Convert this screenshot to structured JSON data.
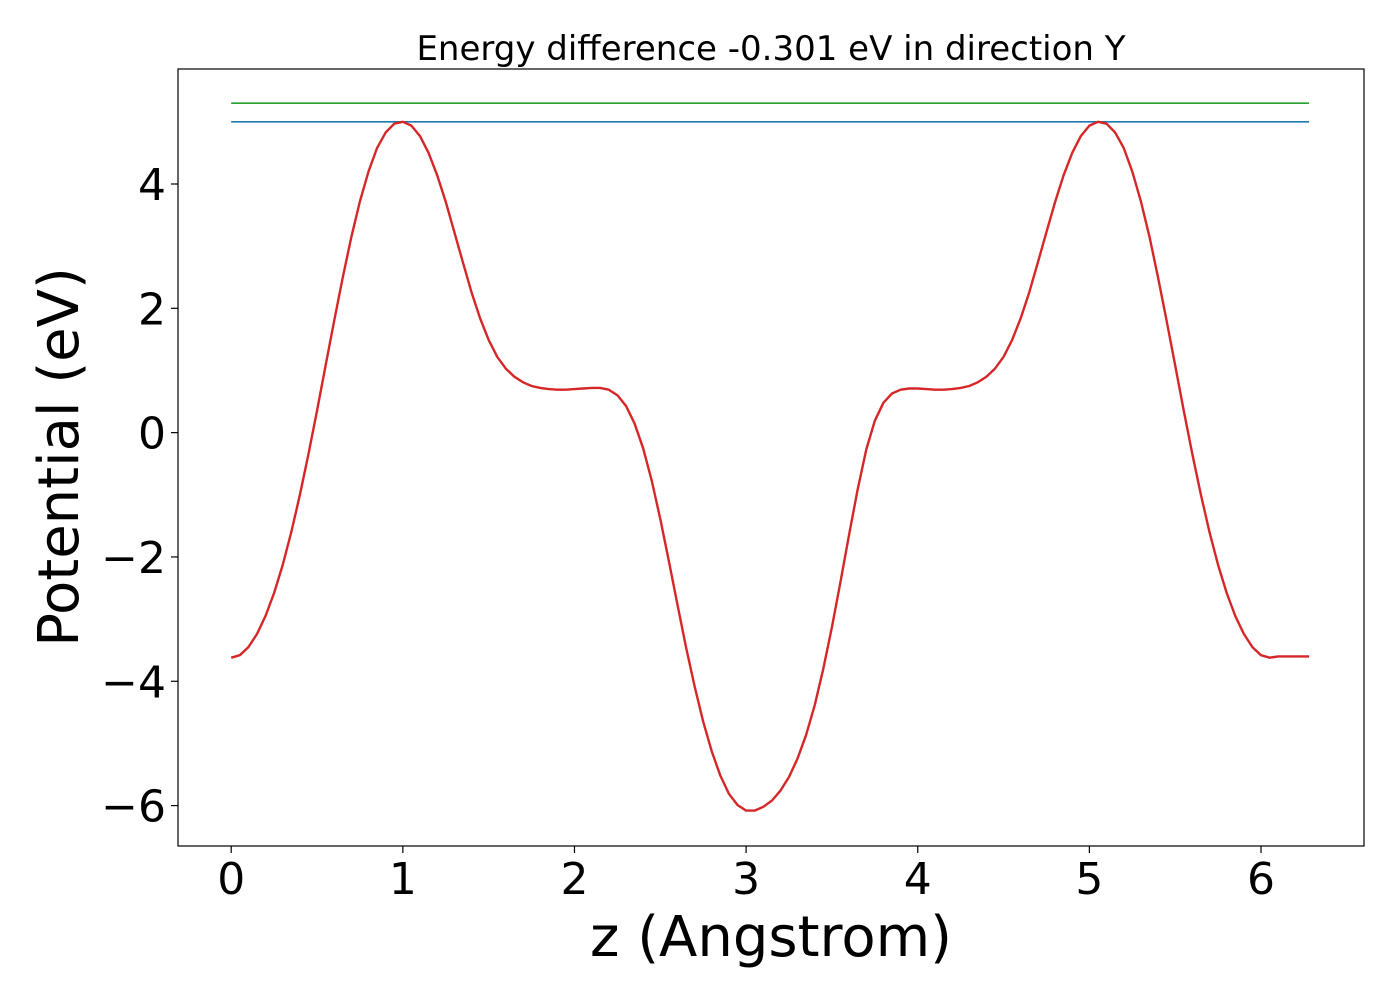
{
  "chart_data": {
    "type": "line",
    "title": "Energy difference -0.301 eV in direction Y",
    "xlabel": "z (Angstrom)",
    "ylabel": "Potential (eV)",
    "xlim": [
      -0.31,
      6.6
    ],
    "ylim": [
      -6.65,
      5.85
    ],
    "xticks": [
      0,
      1,
      2,
      3,
      4,
      5,
      6
    ],
    "yticks": [
      -6,
      -4,
      -2,
      0,
      2,
      4
    ],
    "xtick_labels": [
      "0",
      "1",
      "2",
      "3",
      "4",
      "5",
      "6"
    ],
    "ytick_labels": [
      "−6",
      "−4",
      "−2",
      "0",
      "2",
      "4"
    ],
    "grid": false,
    "legend": "none",
    "series": [
      {
        "color": "#2ca02c",
        "x": [
          0,
          6.28
        ],
        "y": [
          5.3,
          5.3
        ]
      },
      {
        "color": "#1f77b4",
        "x": [
          0,
          6.28
        ],
        "y": [
          5.0,
          5.0
        ]
      },
      {
        "color": "#d62728",
        "x": [
          0.0,
          0.05,
          0.1,
          0.15,
          0.2,
          0.25,
          0.3,
          0.35,
          0.4,
          0.45,
          0.5,
          0.55,
          0.6,
          0.65,
          0.7,
          0.75,
          0.8,
          0.85,
          0.9,
          0.95,
          1.0,
          1.05,
          1.1,
          1.15,
          1.2,
          1.25,
          1.3,
          1.35,
          1.4,
          1.45,
          1.5,
          1.55,
          1.6,
          1.65,
          1.7,
          1.75,
          1.8,
          1.85,
          1.9,
          1.95,
          2.0,
          2.05,
          2.1,
          2.15,
          2.2,
          2.25,
          2.3,
          2.35,
          2.4,
          2.45,
          2.5,
          2.55,
          2.6,
          2.65,
          2.7,
          2.75,
          2.8,
          2.85,
          2.9,
          2.95,
          3.0,
          3.05,
          3.1,
          3.15,
          3.2,
          3.25,
          3.3,
          3.35,
          3.4,
          3.45,
          3.5,
          3.55,
          3.6,
          3.65,
          3.7,
          3.75,
          3.8,
          3.85,
          3.9,
          3.95,
          4.0,
          4.05,
          4.1,
          4.15,
          4.2,
          4.25,
          4.3,
          4.35,
          4.4,
          4.45,
          4.5,
          4.55,
          4.6,
          4.65,
          4.7,
          4.75,
          4.8,
          4.85,
          4.9,
          4.95,
          5.0,
          5.05,
          5.1,
          5.15,
          5.2,
          5.25,
          5.3,
          5.35,
          5.4,
          5.45,
          5.5,
          5.55,
          5.6,
          5.65,
          5.7,
          5.75,
          5.8,
          5.85,
          5.9,
          5.95,
          6.0,
          6.05,
          6.1,
          6.15,
          6.2,
          6.25,
          6.28
        ],
        "y": [
          -3.62,
          -3.58,
          -3.45,
          -3.24,
          -2.95,
          -2.58,
          -2.13,
          -1.6,
          -1.0,
          -0.35,
          0.35,
          1.08,
          1.8,
          2.5,
          3.15,
          3.72,
          4.2,
          4.58,
          4.83,
          4.97,
          5.0,
          4.94,
          4.77,
          4.5,
          4.14,
          3.71,
          3.23,
          2.74,
          2.26,
          1.84,
          1.49,
          1.22,
          1.03,
          0.9,
          0.81,
          0.75,
          0.72,
          0.7,
          0.69,
          0.69,
          0.7,
          0.71,
          0.72,
          0.72,
          0.69,
          0.6,
          0.43,
          0.15,
          -0.25,
          -0.77,
          -1.39,
          -2.07,
          -2.77,
          -3.45,
          -4.08,
          -4.65,
          -5.13,
          -5.52,
          -5.81,
          -5.99,
          -6.08,
          -6.08,
          -6.02,
          -5.92,
          -5.76,
          -5.54,
          -5.24,
          -4.86,
          -4.38,
          -3.8,
          -3.13,
          -2.4,
          -1.64,
          -0.91,
          -0.27,
          0.19,
          0.48,
          0.63,
          0.69,
          0.71,
          0.71,
          0.7,
          0.69,
          0.69,
          0.7,
          0.72,
          0.75,
          0.81,
          0.9,
          1.03,
          1.22,
          1.49,
          1.84,
          2.26,
          2.74,
          3.23,
          3.71,
          4.14,
          4.5,
          4.77,
          4.94,
          5.0,
          4.97,
          4.83,
          4.58,
          4.2,
          3.72,
          3.15,
          2.5,
          1.8,
          1.08,
          0.35,
          -0.35,
          -1.0,
          -1.6,
          -2.13,
          -2.58,
          -2.95,
          -3.24,
          -3.45,
          -3.58,
          -3.62,
          -3.6,
          -3.6,
          -3.6,
          -3.6,
          -3.6
        ]
      }
    ]
  }
}
